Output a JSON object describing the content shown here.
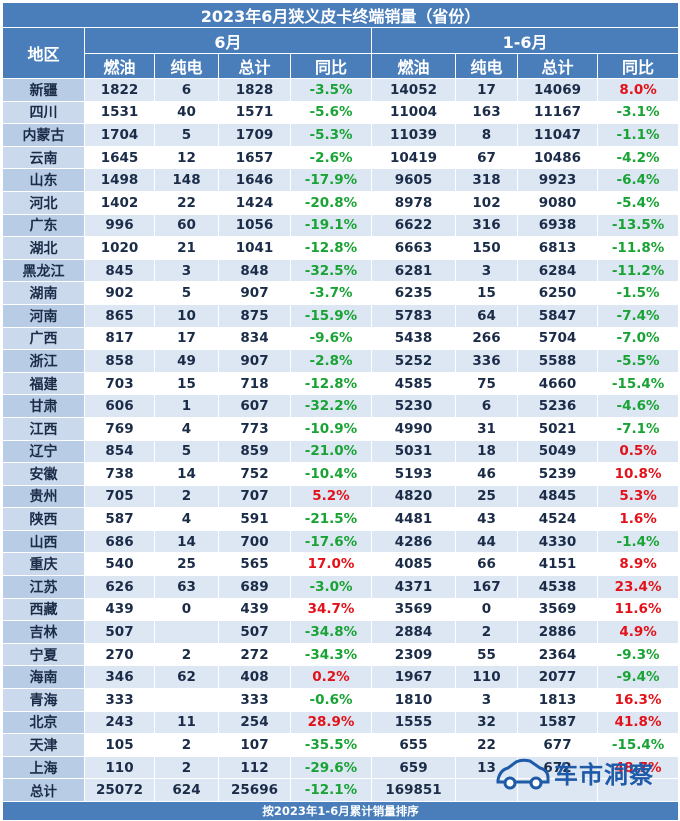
{
  "title": "2023年6月狭义皮卡终端销量（省份）",
  "header": {
    "region": "地区",
    "group_june": "6月",
    "group_ytd": "1-6月",
    "cols": [
      "燃油",
      "纯电",
      "总计",
      "同比"
    ]
  },
  "rows": [
    {
      "region": "新疆",
      "jun": [
        "1822",
        "6",
        "1828",
        "-3.5%"
      ],
      "ytd": [
        "14052",
        "17",
        "14069",
        "8.0%"
      ]
    },
    {
      "region": "四川",
      "jun": [
        "1531",
        "40",
        "1571",
        "-5.6%"
      ],
      "ytd": [
        "11004",
        "163",
        "11167",
        "-3.1%"
      ]
    },
    {
      "region": "内蒙古",
      "jun": [
        "1704",
        "5",
        "1709",
        "-5.3%"
      ],
      "ytd": [
        "11039",
        "8",
        "11047",
        "-1.1%"
      ]
    },
    {
      "region": "云南",
      "jun": [
        "1645",
        "12",
        "1657",
        "-2.6%"
      ],
      "ytd": [
        "10419",
        "67",
        "10486",
        "-4.2%"
      ]
    },
    {
      "region": "山东",
      "jun": [
        "1498",
        "148",
        "1646",
        "-17.9%"
      ],
      "ytd": [
        "9605",
        "318",
        "9923",
        "-6.4%"
      ]
    },
    {
      "region": "河北",
      "jun": [
        "1402",
        "22",
        "1424",
        "-20.8%"
      ],
      "ytd": [
        "8978",
        "102",
        "9080",
        "-5.4%"
      ]
    },
    {
      "region": "广东",
      "jun": [
        "996",
        "60",
        "1056",
        "-19.1%"
      ],
      "ytd": [
        "6622",
        "316",
        "6938",
        "-13.5%"
      ]
    },
    {
      "region": "湖北",
      "jun": [
        "1020",
        "21",
        "1041",
        "-12.8%"
      ],
      "ytd": [
        "6663",
        "150",
        "6813",
        "-11.8%"
      ]
    },
    {
      "region": "黑龙江",
      "jun": [
        "845",
        "3",
        "848",
        "-32.5%"
      ],
      "ytd": [
        "6281",
        "3",
        "6284",
        "-11.2%"
      ]
    },
    {
      "region": "湖南",
      "jun": [
        "902",
        "5",
        "907",
        "-3.7%"
      ],
      "ytd": [
        "6235",
        "15",
        "6250",
        "-1.5%"
      ]
    },
    {
      "region": "河南",
      "jun": [
        "865",
        "10",
        "875",
        "-15.9%"
      ],
      "ytd": [
        "5783",
        "64",
        "5847",
        "-7.4%"
      ]
    },
    {
      "region": "广西",
      "jun": [
        "817",
        "17",
        "834",
        "-9.6%"
      ],
      "ytd": [
        "5438",
        "266",
        "5704",
        "-7.0%"
      ]
    },
    {
      "region": "浙江",
      "jun": [
        "858",
        "49",
        "907",
        "-2.8%"
      ],
      "ytd": [
        "5252",
        "336",
        "5588",
        "-5.5%"
      ]
    },
    {
      "region": "福建",
      "jun": [
        "703",
        "15",
        "718",
        "-12.8%"
      ],
      "ytd": [
        "4585",
        "75",
        "4660",
        "-15.4%"
      ]
    },
    {
      "region": "甘肃",
      "jun": [
        "606",
        "1",
        "607",
        "-32.2%"
      ],
      "ytd": [
        "5230",
        "6",
        "5236",
        "-4.6%"
      ]
    },
    {
      "region": "江西",
      "jun": [
        "769",
        "4",
        "773",
        "-10.9%"
      ],
      "ytd": [
        "4990",
        "31",
        "5021",
        "-7.1%"
      ]
    },
    {
      "region": "辽宁",
      "jun": [
        "854",
        "5",
        "859",
        "-21.0%"
      ],
      "ytd": [
        "5031",
        "18",
        "5049",
        "0.5%"
      ]
    },
    {
      "region": "安徽",
      "jun": [
        "738",
        "14",
        "752",
        "-10.4%"
      ],
      "ytd": [
        "5193",
        "46",
        "5239",
        "10.8%"
      ]
    },
    {
      "region": "贵州",
      "jun": [
        "705",
        "2",
        "707",
        "5.2%"
      ],
      "ytd": [
        "4820",
        "25",
        "4845",
        "5.3%"
      ]
    },
    {
      "region": "陕西",
      "jun": [
        "587",
        "4",
        "591",
        "-21.5%"
      ],
      "ytd": [
        "4481",
        "43",
        "4524",
        "1.6%"
      ]
    },
    {
      "region": "山西",
      "jun": [
        "686",
        "14",
        "700",
        "-17.6%"
      ],
      "ytd": [
        "4286",
        "44",
        "4330",
        "-1.4%"
      ]
    },
    {
      "region": "重庆",
      "jun": [
        "540",
        "25",
        "565",
        "17.0%"
      ],
      "ytd": [
        "4085",
        "66",
        "4151",
        "8.9%"
      ]
    },
    {
      "region": "江苏",
      "jun": [
        "626",
        "63",
        "689",
        "-3.0%"
      ],
      "ytd": [
        "4371",
        "167",
        "4538",
        "23.4%"
      ]
    },
    {
      "region": "西藏",
      "jun": [
        "439",
        "0",
        "439",
        "34.7%"
      ],
      "ytd": [
        "3569",
        "0",
        "3569",
        "11.6%"
      ]
    },
    {
      "region": "吉林",
      "jun": [
        "507",
        "",
        "507",
        "-34.8%"
      ],
      "ytd": [
        "2884",
        "2",
        "2886",
        "4.9%"
      ]
    },
    {
      "region": "宁夏",
      "jun": [
        "270",
        "2",
        "272",
        "-34.3%"
      ],
      "ytd": [
        "2309",
        "55",
        "2364",
        "-9.3%"
      ]
    },
    {
      "region": "海南",
      "jun": [
        "346",
        "62",
        "408",
        "0.2%"
      ],
      "ytd": [
        "1967",
        "110",
        "2077",
        "-9.4%"
      ]
    },
    {
      "region": "青海",
      "jun": [
        "333",
        "",
        "333",
        "-0.6%"
      ],
      "ytd": [
        "1810",
        "3",
        "1813",
        "16.3%"
      ]
    },
    {
      "region": "北京",
      "jun": [
        "243",
        "11",
        "254",
        "28.9%"
      ],
      "ytd": [
        "1555",
        "32",
        "1587",
        "41.8%"
      ]
    },
    {
      "region": "天津",
      "jun": [
        "105",
        "2",
        "107",
        "-35.5%"
      ],
      "ytd": [
        "655",
        "22",
        "677",
        "-15.4%"
      ]
    },
    {
      "region": "上海",
      "jun": [
        "110",
        "2",
        "112",
        "-29.6%"
      ],
      "ytd": [
        "659",
        "13",
        "672",
        "48.7%"
      ]
    }
  ],
  "total": {
    "region": "总计",
    "jun": [
      "25072",
      "624",
      "25696",
      "-12.1%"
    ],
    "ytd": [
      "169851",
      "",
      "",
      ""
    ]
  },
  "footer": "按2023年1-6月累计销量排序",
  "watermark": "车市洞察",
  "colors": {
    "header_bg": "#4a7ebb",
    "positive": "#e3121a",
    "negative": "#19a335",
    "text": "#1b2c48"
  },
  "chart_data": {
    "type": "table",
    "title": "2023年6月狭义皮卡终端销量（省份）",
    "columns": [
      "地区",
      "6月 燃油",
      "6月 纯电",
      "6月 总计",
      "6月 同比",
      "1-6月 燃油",
      "1-6月 纯电",
      "1-6月 总计",
      "1-6月 同比"
    ],
    "note": "按2023年1-6月累计销量排序"
  }
}
